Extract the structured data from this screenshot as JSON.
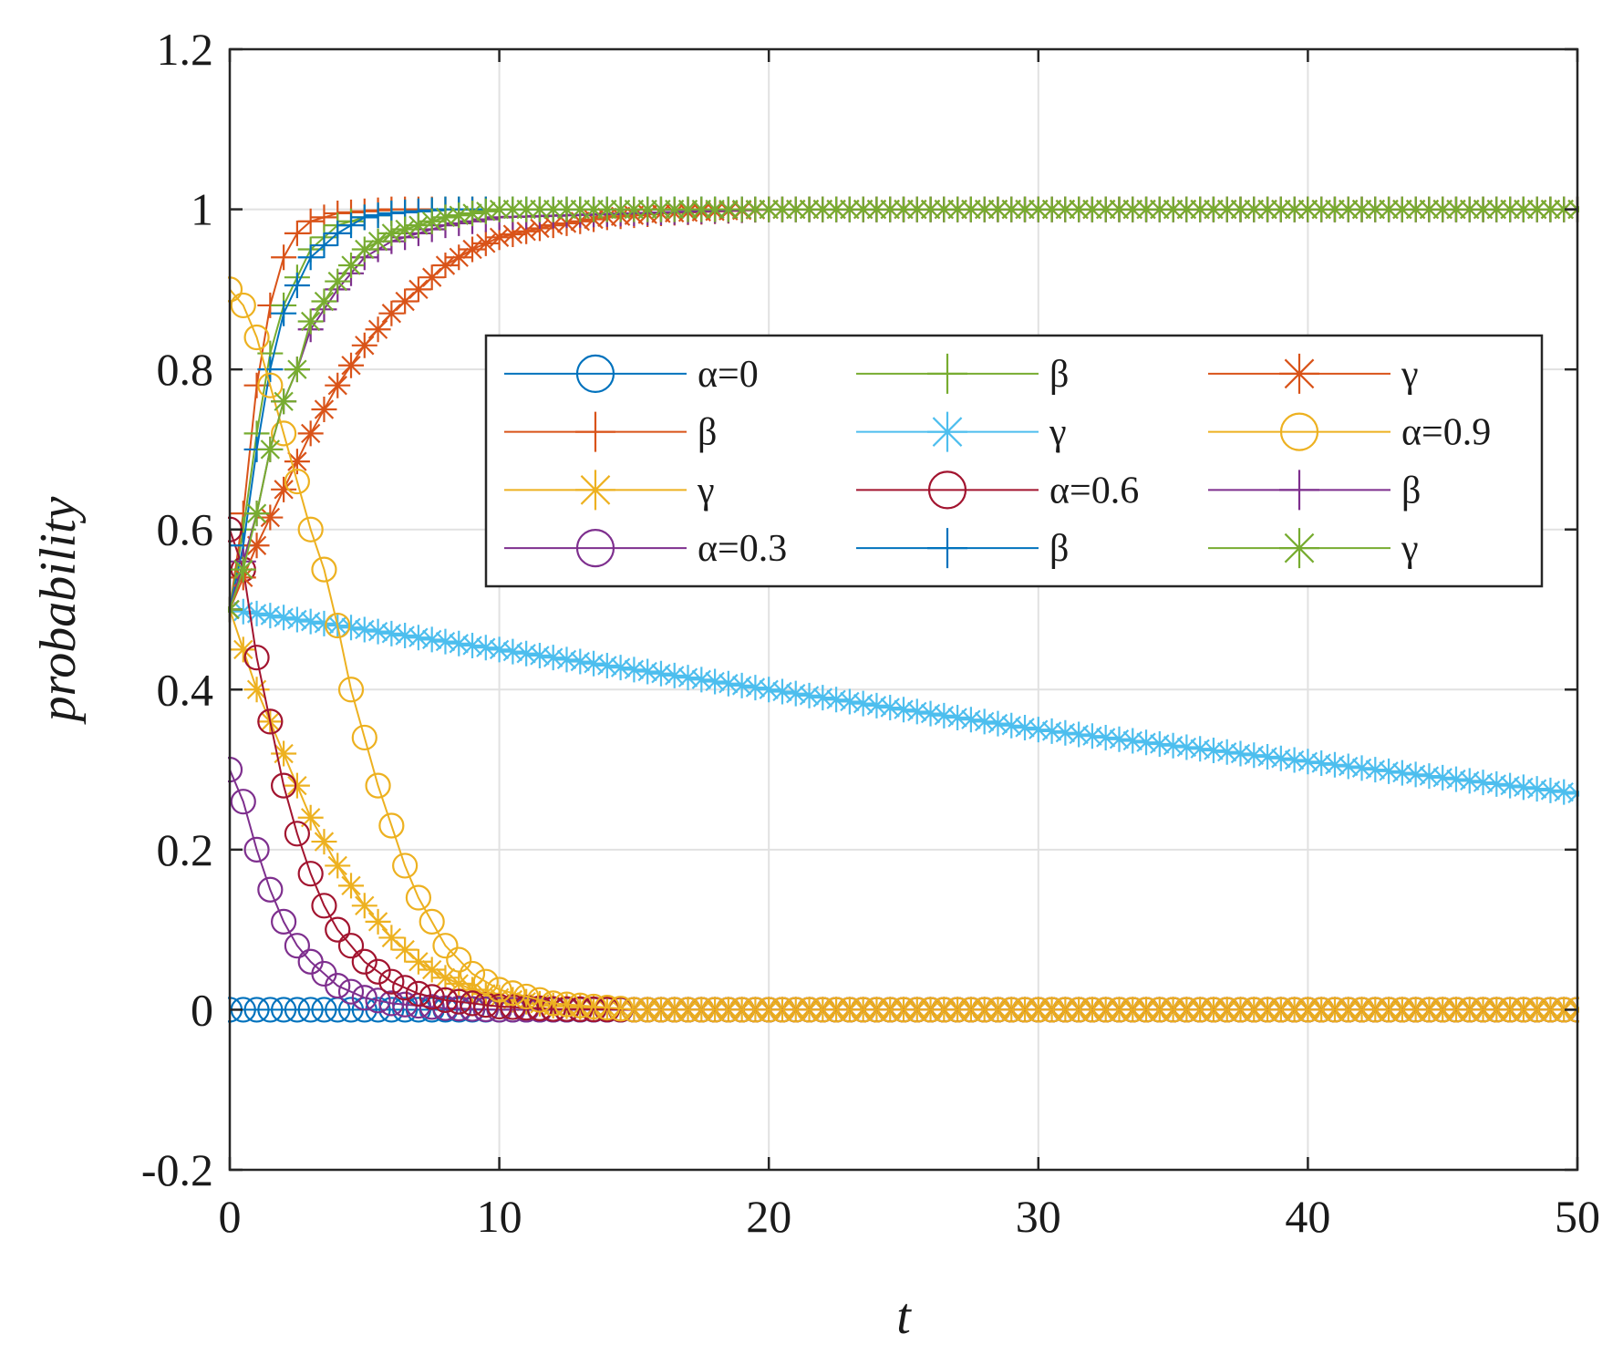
{
  "chart_data": {
    "type": "line",
    "title": "",
    "xlabel": "t",
    "ylabel": "probability",
    "xlim": [
      0,
      50
    ],
    "ylim": [
      -0.2,
      1.2
    ],
    "xticks": [
      0,
      10,
      20,
      30,
      40,
      50
    ],
    "xtick_labels": [
      "0",
      "10",
      "20",
      "30",
      "40",
      "50"
    ],
    "yticks": [
      -0.2,
      0,
      0.2,
      0.4,
      0.6,
      0.8,
      1,
      1.2
    ],
    "ytick_labels": [
      "-0.2",
      "0",
      "0.2",
      "0.4",
      "0.6",
      "0.8",
      "1",
      "1.2"
    ],
    "grid": true,
    "legend_position": "upper-right, three columns",
    "marker_spacing": 0.5,
    "series": [
      {
        "name": "α=0",
        "color": "#0072BD",
        "marker": "circle",
        "x": [
          0,
          1,
          2,
          3,
          4,
          5,
          6,
          8,
          10,
          15,
          20,
          30,
          40,
          50
        ],
        "values": [
          0,
          0,
          0,
          0,
          0,
          0,
          0,
          0,
          0,
          0,
          0,
          0,
          0,
          0
        ]
      },
      {
        "name": "β",
        "color": "#D95319",
        "marker": "plus",
        "x": [
          0,
          0.5,
          1,
          1.5,
          2,
          2.5,
          3,
          4,
          6,
          10,
          20,
          30,
          40,
          50
        ],
        "values": [
          0.5,
          0.62,
          0.78,
          0.88,
          0.94,
          0.97,
          0.985,
          0.995,
          1,
          1,
          1,
          1,
          1,
          1
        ]
      },
      {
        "name": "γ",
        "color": "#EDB120",
        "marker": "asterisk",
        "x": [
          0,
          1,
          2,
          3,
          4,
          5,
          6,
          7,
          8,
          9,
          10,
          12,
          15,
          20,
          30,
          40,
          50
        ],
        "values": [
          0.5,
          0.4,
          0.32,
          0.24,
          0.18,
          0.13,
          0.09,
          0.06,
          0.04,
          0.025,
          0.015,
          0.005,
          0,
          0,
          0,
          0,
          0
        ]
      },
      {
        "name": "α=0.3",
        "color": "#7E2F8E",
        "marker": "circle",
        "x": [
          0,
          0.5,
          1,
          1.5,
          2,
          2.5,
          3,
          4,
          5,
          6,
          8,
          10,
          15,
          20,
          30,
          40,
          50
        ],
        "values": [
          0.3,
          0.26,
          0.2,
          0.15,
          0.11,
          0.08,
          0.06,
          0.03,
          0.015,
          0.008,
          0.002,
          0,
          0,
          0,
          0,
          0,
          0
        ]
      },
      {
        "name": "β",
        "color": "#77AC30",
        "marker": "plus",
        "x": [
          0,
          0.5,
          1,
          1.5,
          2,
          3,
          4,
          5,
          6,
          8,
          10,
          20,
          30,
          40,
          50
        ],
        "values": [
          0.5,
          0.6,
          0.72,
          0.82,
          0.88,
          0.95,
          0.98,
          0.99,
          0.995,
          1,
          1,
          1,
          1,
          1,
          1
        ]
      },
      {
        "name": "γ",
        "color": "#4DBEEE",
        "marker": "asterisk",
        "x": [
          0,
          5,
          10,
          15,
          20,
          25,
          30,
          35,
          40,
          45,
          50
        ],
        "values": [
          0.5,
          0.475,
          0.45,
          0.425,
          0.4,
          0.375,
          0.35,
          0.33,
          0.31,
          0.29,
          0.27
        ]
      },
      {
        "name": "α=0.6",
        "color": "#A2142F",
        "marker": "circle",
        "x": [
          0,
          0.5,
          1,
          1.5,
          2,
          2.5,
          3,
          3.5,
          4,
          5,
          6,
          7,
          8,
          10,
          12,
          15,
          20,
          30,
          40,
          50
        ],
        "values": [
          0.6,
          0.55,
          0.44,
          0.36,
          0.28,
          0.22,
          0.17,
          0.13,
          0.1,
          0.06,
          0.035,
          0.02,
          0.012,
          0.004,
          0.001,
          0,
          0,
          0,
          0,
          0
        ]
      },
      {
        "name": "β",
        "color": "#0072BD",
        "marker": "plus",
        "x": [
          0,
          0.5,
          1,
          1.5,
          2,
          3,
          4,
          5,
          6,
          8,
          10,
          20,
          30,
          40,
          50
        ],
        "values": [
          0.5,
          0.58,
          0.7,
          0.8,
          0.87,
          0.94,
          0.97,
          0.99,
          0.995,
          1,
          1,
          1,
          1,
          1,
          1
        ]
      },
      {
        "name": "γ",
        "color": "#D95319",
        "marker": "asterisk",
        "x": [
          0,
          1,
          2,
          3,
          4,
          5,
          6,
          7,
          8,
          9,
          10,
          12,
          14,
          16,
          20,
          30,
          40,
          50
        ],
        "values": [
          0.5,
          0.58,
          0.65,
          0.72,
          0.78,
          0.83,
          0.87,
          0.9,
          0.93,
          0.95,
          0.965,
          0.98,
          0.99,
          0.995,
          1,
          1,
          1,
          1
        ]
      },
      {
        "name": "α=0.9",
        "color": "#EDB120",
        "marker": "circle",
        "x": [
          0,
          0.5,
          1,
          1.5,
          2,
          2.5,
          3,
          3.5,
          4,
          4.5,
          5,
          5.5,
          6,
          6.5,
          7,
          8,
          9,
          10,
          12,
          15,
          20,
          30,
          40,
          50
        ],
        "values": [
          0.9,
          0.88,
          0.84,
          0.78,
          0.72,
          0.66,
          0.6,
          0.55,
          0.48,
          0.4,
          0.34,
          0.28,
          0.23,
          0.18,
          0.14,
          0.08,
          0.045,
          0.025,
          0.008,
          0,
          0,
          0,
          0,
          0
        ]
      },
      {
        "name": "β",
        "color": "#7E2F8E",
        "marker": "plus",
        "x": [
          0,
          0.5,
          1,
          1.5,
          2,
          2.5,
          3,
          4,
          5,
          6,
          7,
          8,
          10,
          20,
          30,
          40,
          50
        ],
        "values": [
          0.5,
          0.56,
          0.62,
          0.7,
          0.76,
          0.8,
          0.85,
          0.9,
          0.94,
          0.96,
          0.97,
          0.98,
          0.99,
          1,
          1,
          1,
          1
        ]
      },
      {
        "name": "γ",
        "color": "#77AC30",
        "marker": "asterisk",
        "x": [
          0,
          0.5,
          1,
          1.5,
          2,
          2.5,
          3,
          4,
          5,
          6,
          7,
          8,
          10,
          20,
          30,
          40,
          50
        ],
        "values": [
          0.5,
          0.55,
          0.62,
          0.7,
          0.76,
          0.8,
          0.86,
          0.91,
          0.95,
          0.97,
          0.98,
          0.99,
          1,
          1,
          1,
          1,
          1
        ]
      }
    ]
  }
}
